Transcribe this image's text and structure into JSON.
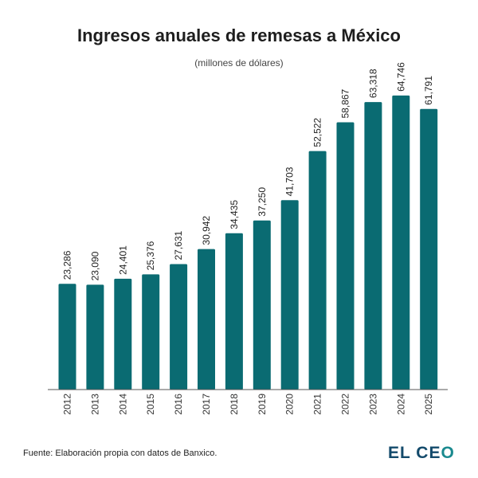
{
  "chart_data": {
    "type": "bar",
    "title": "Ingresos anuales de remesas a México",
    "subtitle": "(millones de dólares)",
    "categories": [
      "2012",
      "2013",
      "2014",
      "2015",
      "2016",
      "2017",
      "2018",
      "2019",
      "2020",
      "2021",
      "2022",
      "2023",
      "2024",
      "2025"
    ],
    "values": [
      23286,
      23090,
      24401,
      25376,
      27631,
      30942,
      34435,
      37250,
      41703,
      52522,
      58867,
      63318,
      64746,
      61791
    ],
    "data_labels": [
      "23,286",
      "23,090",
      "24,401",
      "25,376",
      "27,631",
      "30,942",
      "34,435",
      "37,250",
      "41,703",
      "52,522",
      "58,867",
      "63,318",
      "64,746",
      "61,791"
    ],
    "ylim": [
      0,
      70000
    ],
    "grid": false,
    "bar_color": "#0a6b72"
  },
  "footer": {
    "source": "Fuente: Elaboración propia con datos de Banxico.",
    "logo": "EL CEO"
  }
}
